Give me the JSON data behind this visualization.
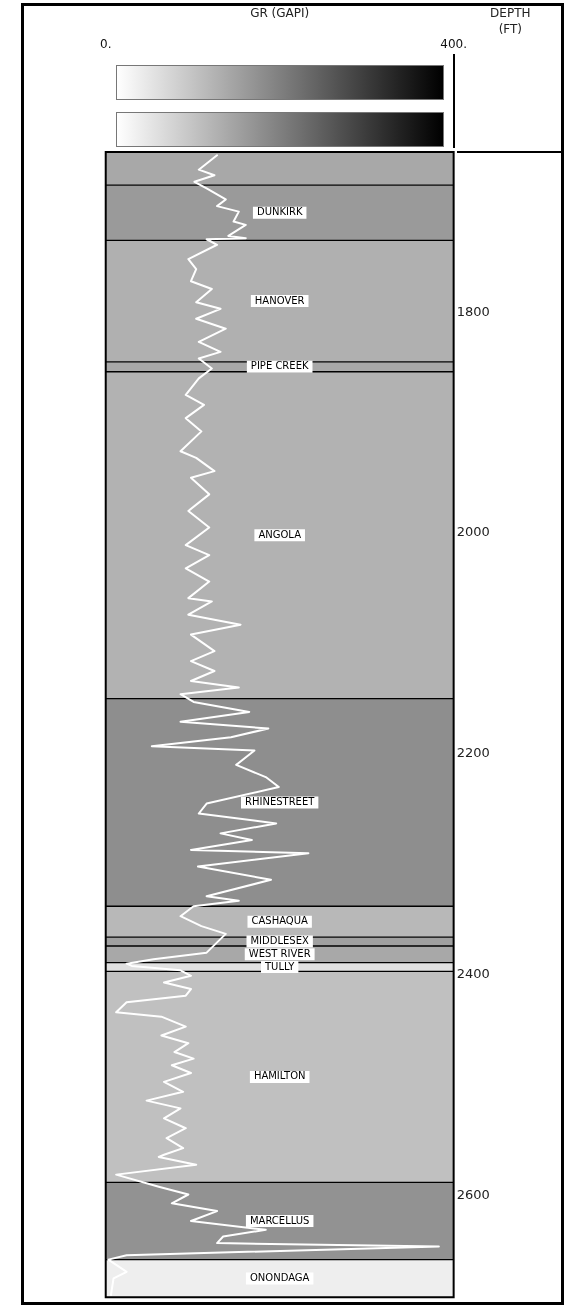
{
  "chart_data": {
    "type": "line",
    "orientation": "horizontal",
    "xlabel": "GR (GAPI)",
    "ylabel": "DEPTH (FT)",
    "xlim": [
      0,
      400
    ],
    "xticks": [
      {
        "value": 0,
        "label": "0."
      },
      {
        "value": 400,
        "label": "400."
      }
    ],
    "ylim": [
      2692,
      1655
    ],
    "yticks": [
      1800,
      2000,
      2200,
      2400,
      2600
    ],
    "series": [
      {
        "color": "#ffffff",
        "x": [
          1658,
          1671,
          1676,
          1682,
          1688,
          1698,
          1704,
          1709,
          1718,
          1721,
          1731,
          1733,
          1734,
          1739,
          1752,
          1761,
          1772,
          1779,
          1791,
          1797,
          1806,
          1815,
          1827,
          1836,
          1842,
          1851,
          1860,
          1875,
          1884,
          1896,
          1908,
          1926,
          1932,
          1944,
          1950,
          1965,
          1980,
          1995,
          2011,
          2020,
          2032,
          2044,
          2059,
          2062,
          2074,
          2083,
          2092,
          2107,
          2116,
          2125,
          2134,
          2140,
          2146,
          2153,
          2162,
          2171,
          2177,
          2185,
          2193,
          2197,
          2210,
          2221,
          2230,
          2245,
          2254,
          2263,
          2272,
          2278,
          2287,
          2290,
          2302,
          2314,
          2329,
          2333,
          2338,
          2347,
          2356,
          2363,
          2380,
          2386,
          2390,
          2392,
          2396,
          2401,
          2407,
          2413,
          2419,
          2425,
          2434,
          2438,
          2447,
          2455,
          2462,
          2470,
          2476,
          2482,
          2489,
          2497,
          2506,
          2514,
          2521,
          2530,
          2539,
          2548,
          2557,
          2563,
          2565,
          2572,
          2581,
          2592,
          2599,
          2607,
          2614,
          2623,
          2631,
          2637,
          2643,
          2646,
          2654,
          2658,
          2669,
          2675,
          2690
        ],
        "values": [
          128,
          107,
          125,
          102,
          116,
          138,
          128,
          153,
          147,
          161,
          141,
          161,
          116,
          128,
          95,
          104,
          98,
          122,
          104,
          132,
          104,
          138,
          107,
          132,
          107,
          122,
          107,
          92,
          113,
          92,
          110,
          86,
          104,
          125,
          98,
          119,
          95,
          119,
          92,
          119,
          92,
          119,
          95,
          122,
          95,
          155,
          98,
          125,
          98,
          125,
          98,
          153,
          86,
          101,
          165,
          86,
          187,
          144,
          53,
          171,
          150,
          184,
          199,
          116,
          107,
          196,
          132,
          168,
          98,
          233,
          106,
          190,
          116,
          153,
          101,
          86,
          110,
          138,
          116,
          55,
          24,
          30,
          86,
          98,
          67,
          98,
          92,
          24,
          12,
          64,
          92,
          64,
          95,
          79,
          101,
          76,
          98,
          67,
          89,
          47,
          86,
          67,
          92,
          70,
          89,
          67,
          61,
          104,
          12,
          61,
          95,
          76,
          128,
          98,
          184,
          135,
          128,
          383,
          24,
          3,
          24,
          9,
          6
        ]
      }
    ],
    "ref_lines": [
      {
        "axis": "y",
        "value": 1685,
        "color": "#000000"
      },
      {
        "axis": "y",
        "value": 1735,
        "color": "#000000"
      },
      {
        "axis": "y",
        "value": 1845,
        "color": "#000000"
      },
      {
        "axis": "y",
        "value": 1854,
        "color": "#000000"
      },
      {
        "axis": "y",
        "value": 2150,
        "color": "#000000"
      },
      {
        "axis": "y",
        "value": 2338,
        "color": "#000000"
      },
      {
        "axis": "y",
        "value": 2366,
        "color": "#000000"
      },
      {
        "axis": "y",
        "value": 2374,
        "color": "#000000"
      },
      {
        "axis": "y",
        "value": 2389,
        "color": "#000000"
      },
      {
        "axis": "y",
        "value": 2397,
        "color": "#000000"
      },
      {
        "axis": "y",
        "value": 2588,
        "color": "#000000"
      },
      {
        "axis": "y",
        "value": 2658,
        "color": "#000000"
      }
    ],
    "bands": [
      {
        "axis": "y",
        "from": 1655,
        "to": 1685,
        "color": "#a8a8a8"
      },
      {
        "axis": "y",
        "from": 1685,
        "to": 1735,
        "label": "DUNKIRK",
        "color": "#9a9a9a"
      },
      {
        "axis": "y",
        "from": 1735,
        "to": 1845,
        "label": "HANOVER",
        "color": "#b0b0b0"
      },
      {
        "axis": "y",
        "from": 1845,
        "to": 1854,
        "label": "PIPE CREEK",
        "color": "#a8a8a8"
      },
      {
        "axis": "y",
        "from": 1854,
        "to": 2150,
        "label": "ANGOLA",
        "color": "#b2b2b2"
      },
      {
        "axis": "y",
        "from": 2150,
        "to": 2338,
        "label": "RHINESTREET",
        "color": "#8e8e8e"
      },
      {
        "axis": "y",
        "from": 2338,
        "to": 2366,
        "label": "CASHAQUA",
        "color": "#b8b8b8"
      },
      {
        "axis": "y",
        "from": 2366,
        "to": 2374,
        "label": "MIDDLESEX",
        "color": "#a0a0a0"
      },
      {
        "axis": "y",
        "from": 2374,
        "to": 2389,
        "label": "WEST RIVER",
        "color": "#a8a8a8"
      },
      {
        "axis": "y",
        "from": 2389,
        "to": 2397,
        "label": "TULLY",
        "color": "#e0e0e0"
      },
      {
        "axis": "y",
        "from": 2397,
        "to": 2588,
        "label": "HAMILTON",
        "color": "#c0c0c0"
      },
      {
        "axis": "y",
        "from": 2588,
        "to": 2658,
        "label": "MARCELLUS",
        "color": "#929292"
      },
      {
        "axis": "y",
        "from": 2658,
        "to": 2692,
        "label": "ONONDAGA",
        "color": "#eeeeee"
      }
    ]
  }
}
